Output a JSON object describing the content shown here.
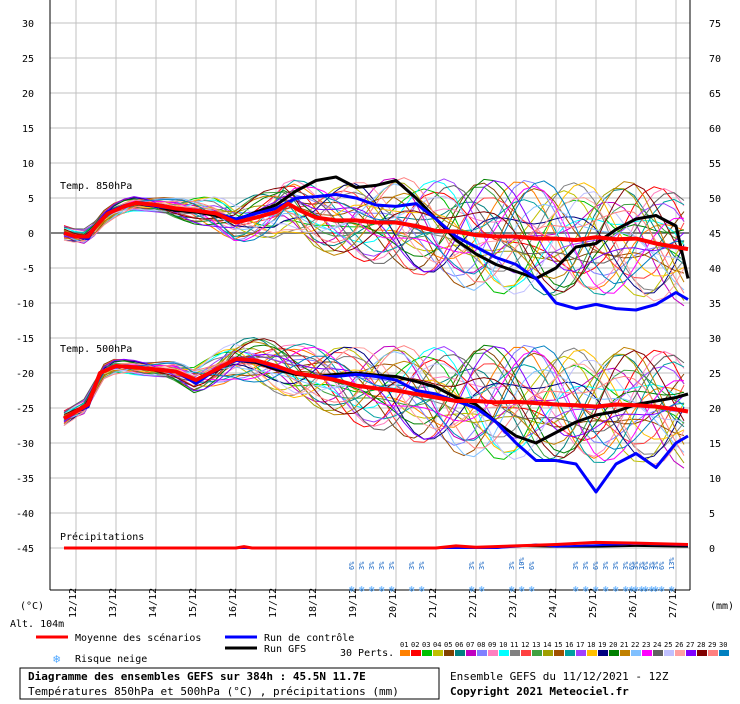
{
  "chart_data": {
    "type": "line",
    "title": "Diagramme des ensembles GEFS sur 384h : 45.5N 11.7E",
    "subtitle": "Températures 850hPa et 500hPa (°C) , précipitations (mm)",
    "ensemble_label": "Ensemble GEFS du 11/12/2021 - 12Z",
    "copyright": "Copyright 2021 Meteociel.fr",
    "altitude": "Alt. 104m",
    "left_unit": "(°C)",
    "right_unit": "(mm)",
    "panel_labels": {
      "t850": "Temp. 850hPa",
      "t500": "Temp. 500hPa",
      "precip": "Précipitations"
    },
    "left_axis": {
      "ylim": [
        -45,
        30
      ],
      "ticks": [
        30,
        25,
        20,
        15,
        10,
        5,
        0,
        -5,
        -10,
        -15,
        -20,
        -25,
        -30,
        -35,
        -40,
        -45
      ]
    },
    "right_axis": {
      "ticks": [
        75,
        70,
        65,
        60,
        55,
        50,
        45,
        40,
        35,
        30,
        25,
        20,
        15,
        10,
        5,
        0
      ]
    },
    "dates": [
      "12/12",
      "13/12",
      "14/12",
      "15/12",
      "16/12",
      "17/12",
      "18/12",
      "19/12",
      "20/12",
      "21/12",
      "22/12",
      "23/12",
      "24/12",
      "25/12",
      "26/12",
      "27/12"
    ],
    "legend": {
      "mean": "Moyenne des scénarios",
      "control": "Run de contrôle",
      "gfs": "Run GFS",
      "snow": "Risque neige",
      "perts": "30 Perts.",
      "pert_numbers": [
        "01",
        "02",
        "03",
        "04",
        "05",
        "06",
        "07",
        "08",
        "09",
        "10",
        "11",
        "12",
        "13",
        "14",
        "15",
        "16",
        "17",
        "18",
        "19",
        "20",
        "21",
        "22",
        "23",
        "24",
        "25",
        "26",
        "27",
        "28",
        "29",
        "30"
      ]
    },
    "colors": {
      "mean": "#ff0000",
      "control": "#0000ff",
      "gfs": "#000000",
      "grid": "#c0c0c0",
      "perts": [
        "#ff8000",
        "#ff0000",
        "#00c000",
        "#c0c000",
        "#804000",
        "#008080",
        "#c000c0",
        "#8080ff",
        "#ff80c0",
        "#00ffff",
        "#808080",
        "#ff4040",
        "#40a040",
        "#a0a000",
        "#a05000",
        "#00a0a0",
        "#a040ff",
        "#ffc000",
        "#000080",
        "#008000",
        "#c08000",
        "#80c0ff",
        "#ff00ff",
        "#606060",
        "#c0c0ff",
        "#ffa0a0",
        "#8000ff",
        "#800000",
        "#ff8080",
        "#0080c0"
      ]
    },
    "snow_risk": [
      {
        "x": 7.0,
        "values": [
          "6%",
          "3%",
          "3%",
          "3%",
          "3%"
        ]
      },
      {
        "x": 8.5,
        "values": [
          "3%",
          "3%"
        ]
      },
      {
        "x": 10.0,
        "values": [
          "3%",
          "3%"
        ]
      },
      {
        "x": 11.0,
        "values": [
          "3%",
          "10%",
          "6%"
        ]
      },
      {
        "x": 12.6,
        "values": [
          "3%",
          "3%",
          "6%",
          "3%",
          "3%",
          "3%",
          "3%",
          "6%",
          "3%"
        ]
      },
      {
        "x": 14.0,
        "values": [
          "6%",
          "3%",
          "3%",
          "6%",
          "13%"
        ]
      }
    ],
    "series": {
      "t850_mean": [
        [
          -0.3,
          0
        ],
        [
          0,
          -0.5
        ],
        [
          0.3,
          -0.5
        ],
        [
          0.5,
          1
        ],
        [
          0.8,
          2.8
        ],
        [
          1.2,
          3.8
        ],
        [
          1.5,
          4.3
        ],
        [
          2,
          4
        ],
        [
          2.5,
          3.5
        ],
        [
          3,
          3.2
        ],
        [
          3.5,
          2.8
        ],
        [
          4,
          1.5
        ],
        [
          4.5,
          2.2
        ],
        [
          5,
          3
        ],
        [
          5.3,
          4.2
        ],
        [
          5.6,
          3.2
        ],
        [
          6,
          2.2
        ],
        [
          6.5,
          1.8
        ],
        [
          7,
          1.8
        ],
        [
          7.5,
          1.5
        ],
        [
          8,
          1.5
        ],
        [
          8.5,
          1.0
        ],
        [
          9,
          0.3
        ],
        [
          9.5,
          0.2
        ],
        [
          10,
          -0.3
        ],
        [
          10.5,
          -0.5
        ],
        [
          11,
          -0.5
        ],
        [
          11.5,
          -0.8
        ],
        [
          12,
          -0.8
        ],
        [
          12.5,
          -1
        ],
        [
          13,
          -0.6
        ],
        [
          13.5,
          -0.9
        ],
        [
          14,
          -0.8
        ],
        [
          14.5,
          -1.5
        ],
        [
          15,
          -2
        ],
        [
          15.3,
          -2.3
        ]
      ],
      "t850_control": [
        [
          -0.3,
          0
        ],
        [
          0,
          -0.5
        ],
        [
          0.3,
          -0.8
        ],
        [
          0.5,
          1
        ],
        [
          0.8,
          3
        ],
        [
          1.2,
          3.9
        ],
        [
          1.5,
          4.3
        ],
        [
          2,
          3.8
        ],
        [
          2.5,
          3.5
        ],
        [
          3,
          3.2
        ],
        [
          3.5,
          2.8
        ],
        [
          4,
          2
        ],
        [
          4.5,
          2.8
        ],
        [
          5,
          3.5
        ],
        [
          5.5,
          5
        ],
        [
          6,
          5.2
        ],
        [
          6.5,
          5.5
        ],
        [
          7,
          5
        ],
        [
          7.5,
          4
        ],
        [
          8,
          3.8
        ],
        [
          8.5,
          4.2
        ],
        [
          9,
          2
        ],
        [
          9.5,
          -0.5
        ],
        [
          10,
          -2
        ],
        [
          10.5,
          -3.5
        ],
        [
          11,
          -4.5
        ],
        [
          11.5,
          -6.5
        ],
        [
          12,
          -10
        ],
        [
          12.5,
          -10.8
        ],
        [
          13,
          -10.2
        ],
        [
          13.5,
          -10.8
        ],
        [
          14,
          -11
        ],
        [
          14.5,
          -10.2
        ],
        [
          15,
          -8.5
        ],
        [
          15.3,
          -9.5
        ]
      ],
      "t850_gfs": [
        [
          -0.3,
          0
        ],
        [
          0,
          -0.5
        ],
        [
          0.3,
          -0.8
        ],
        [
          0.5,
          1
        ],
        [
          0.8,
          3
        ],
        [
          1.2,
          3.8
        ],
        [
          1.5,
          4.2
        ],
        [
          2,
          3.8
        ],
        [
          2.5,
          3.2
        ],
        [
          3,
          3
        ],
        [
          3.5,
          2.5
        ],
        [
          4,
          1.8
        ],
        [
          4.5,
          3
        ],
        [
          5,
          4
        ],
        [
          5.5,
          6
        ],
        [
          6,
          7.5
        ],
        [
          6.5,
          8
        ],
        [
          7,
          6.5
        ],
        [
          7.5,
          6.8
        ],
        [
          8,
          7.5
        ],
        [
          8.5,
          5
        ],
        [
          9,
          2
        ],
        [
          9.5,
          -1
        ],
        [
          10,
          -3
        ],
        [
          10.5,
          -4.5
        ],
        [
          11,
          -5.5
        ],
        [
          11.5,
          -6.5
        ],
        [
          12,
          -5
        ],
        [
          12.5,
          -2
        ],
        [
          13,
          -1.5
        ],
        [
          13.5,
          0.5
        ],
        [
          14,
          2
        ],
        [
          14.5,
          2.5
        ],
        [
          15,
          1
        ],
        [
          15.3,
          -6.5
        ]
      ],
      "t500_mean": [
        [
          -0.3,
          -26.5
        ],
        [
          0,
          -25.5
        ],
        [
          0.3,
          -24.5
        ],
        [
          0.6,
          -20
        ],
        [
          1,
          -19
        ],
        [
          1.5,
          -19.2
        ],
        [
          2,
          -19.5
        ],
        [
          2.5,
          -19.8
        ],
        [
          3,
          -21
        ],
        [
          3.5,
          -19.5
        ],
        [
          4,
          -18
        ],
        [
          4.5,
          -18.2
        ],
        [
          5,
          -19
        ],
        [
          5.5,
          -20
        ],
        [
          6,
          -20.5
        ],
        [
          6.5,
          -21
        ],
        [
          7,
          -21.8
        ],
        [
          7.5,
          -22.2
        ],
        [
          8,
          -22.5
        ],
        [
          8.5,
          -23
        ],
        [
          9,
          -23.5
        ],
        [
          9.5,
          -24
        ],
        [
          10,
          -24
        ],
        [
          10.5,
          -24.2
        ],
        [
          11,
          -24.1
        ],
        [
          11.5,
          -24.3
        ],
        [
          12,
          -24.5
        ],
        [
          12.5,
          -24.6
        ],
        [
          13,
          -24.8
        ],
        [
          13.5,
          -24.5
        ],
        [
          14,
          -24.6
        ],
        [
          14.5,
          -24.8
        ],
        [
          15,
          -25.2
        ],
        [
          15.3,
          -25.5
        ]
      ],
      "t500_control": [
        [
          -0.3,
          -26.5
        ],
        [
          0,
          -25.5
        ],
        [
          0.3,
          -24.8
        ],
        [
          0.6,
          -20
        ],
        [
          1,
          -19
        ],
        [
          1.5,
          -19.2
        ],
        [
          2,
          -19.5
        ],
        [
          2.5,
          -19.8
        ],
        [
          3,
          -21.5
        ],
        [
          3.5,
          -19.5
        ],
        [
          4,
          -18.2
        ],
        [
          4.5,
          -18.3
        ],
        [
          5,
          -19.2
        ],
        [
          5.5,
          -20
        ],
        [
          6,
          -20.5
        ],
        [
          6.5,
          -20.5
        ],
        [
          7,
          -20.2
        ],
        [
          7.5,
          -20.5
        ],
        [
          8,
          -21
        ],
        [
          8.5,
          -22.5
        ],
        [
          9,
          -23
        ],
        [
          9.5,
          -24
        ],
        [
          10,
          -25
        ],
        [
          10.5,
          -27
        ],
        [
          11,
          -30
        ],
        [
          11.5,
          -32.5
        ],
        [
          12,
          -32.5
        ],
        [
          12.5,
          -33
        ],
        [
          13,
          -37
        ],
        [
          13.5,
          -33
        ],
        [
          14,
          -31.5
        ],
        [
          14.5,
          -33.5
        ],
        [
          15,
          -30
        ],
        [
          15.3,
          -29
        ]
      ],
      "t500_gfs": [
        [
          -0.3,
          -26.5
        ],
        [
          0,
          -25.5
        ],
        [
          0.3,
          -24.8
        ],
        [
          0.6,
          -20
        ],
        [
          1,
          -19
        ],
        [
          1.5,
          -19.2
        ],
        [
          2,
          -19.5
        ],
        [
          2.5,
          -19.8
        ],
        [
          3,
          -21.3
        ],
        [
          3.5,
          -19.5
        ],
        [
          4,
          -18.2
        ],
        [
          4.5,
          -18.5
        ],
        [
          5,
          -19.5
        ],
        [
          5.5,
          -20.2
        ],
        [
          6,
          -20.5
        ],
        [
          6.5,
          -20.2
        ],
        [
          7,
          -20
        ],
        [
          7.5,
          -20.3
        ],
        [
          8,
          -20.5
        ],
        [
          8.5,
          -21.2
        ],
        [
          9,
          -22
        ],
        [
          9.5,
          -23.5
        ],
        [
          10,
          -24.5
        ],
        [
          10.5,
          -27
        ],
        [
          11,
          -29
        ],
        [
          11.5,
          -30
        ],
        [
          12,
          -28.5
        ],
        [
          12.5,
          -27
        ],
        [
          13,
          -26
        ],
        [
          13.5,
          -25.5
        ],
        [
          14,
          -24.5
        ],
        [
          14.5,
          -24
        ],
        [
          15,
          -23.5
        ],
        [
          15.3,
          -23
        ]
      ],
      "precip_mean": [
        [
          -0.3,
          0
        ],
        [
          4,
          0
        ],
        [
          4.2,
          0.2
        ],
        [
          4.4,
          0
        ],
        [
          9,
          0
        ],
        [
          9.5,
          0.3
        ],
        [
          10,
          0.1
        ],
        [
          11,
          0.3
        ],
        [
          12,
          0.5
        ],
        [
          13,
          0.8
        ],
        [
          14,
          0.7
        ],
        [
          15.3,
          0.5
        ]
      ],
      "precip_control": [
        [
          -0.3,
          0
        ],
        [
          10.5,
          0
        ],
        [
          11,
          0.2
        ],
        [
          11.5,
          0.5
        ],
        [
          12,
          0.2
        ],
        [
          13,
          0.4
        ],
        [
          14,
          0.6
        ],
        [
          15.3,
          0.4
        ]
      ],
      "precip_gfs": [
        [
          -0.3,
          0
        ],
        [
          10.5,
          0
        ],
        [
          11,
          0.3
        ],
        [
          12,
          0.2
        ],
        [
          13,
          0.2
        ],
        [
          14,
          0.3
        ],
        [
          15.3,
          0.2
        ]
      ]
    }
  }
}
